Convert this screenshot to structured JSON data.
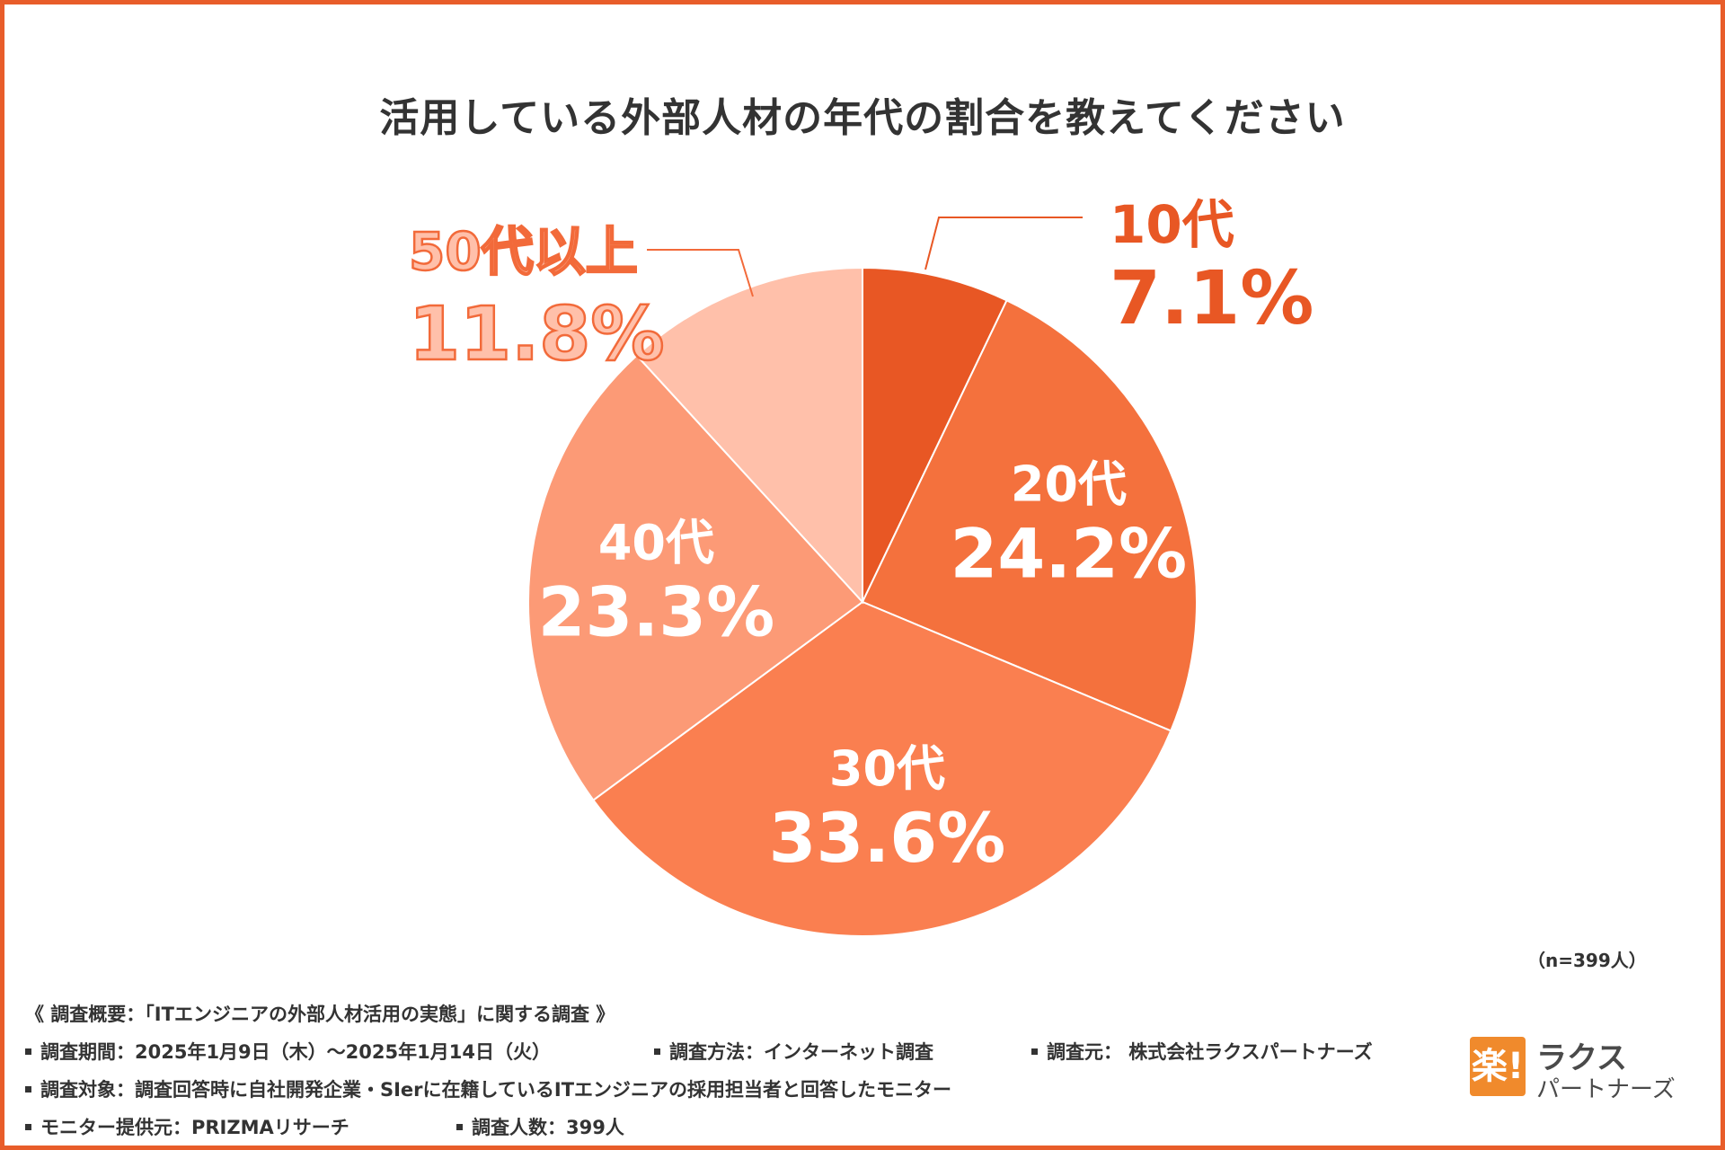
{
  "title": "活用している外部人材の年代の割合を教えてください",
  "chart_data": {
    "type": "pie",
    "title": "活用している外部人材の年代の割合を教えてください",
    "categories": [
      "10代",
      "20代",
      "30代",
      "40代",
      "50代以上"
    ],
    "values": [
      7.1,
      24.2,
      33.6,
      23.3,
      11.8
    ],
    "value_labels": [
      "7.1%",
      "24.2%",
      "33.6%",
      "23.3%",
      "11.8%"
    ],
    "colors": [
      "#e85724",
      "#f4713d",
      "#fa7f50",
      "#fc9a76",
      "#ffc0aa"
    ],
    "start": "top, clockwise"
  },
  "sample_note": "（n=399人）",
  "survey": {
    "heading": "《 調査概要：「ITエンジニアの外部人材活用の実態」に関する調査 》",
    "period": "調査期間：2025年1月9日（木）～2025年1月14日（火）",
    "method": "調査方法：インターネット調査",
    "source": "調査元： 株式会社ラクスパートナーズ",
    "target": "調査対象：調査回答時に自社開発企業・SIerに在籍しているITエンジニアの採用担当者と回答したモニター",
    "provider": "モニター提供元：PRIZMAリサーチ",
    "respondents": "調査人数：399人"
  },
  "logo": {
    "mark": "楽!",
    "name": "ラクス",
    "sub": "パートナーズ"
  }
}
